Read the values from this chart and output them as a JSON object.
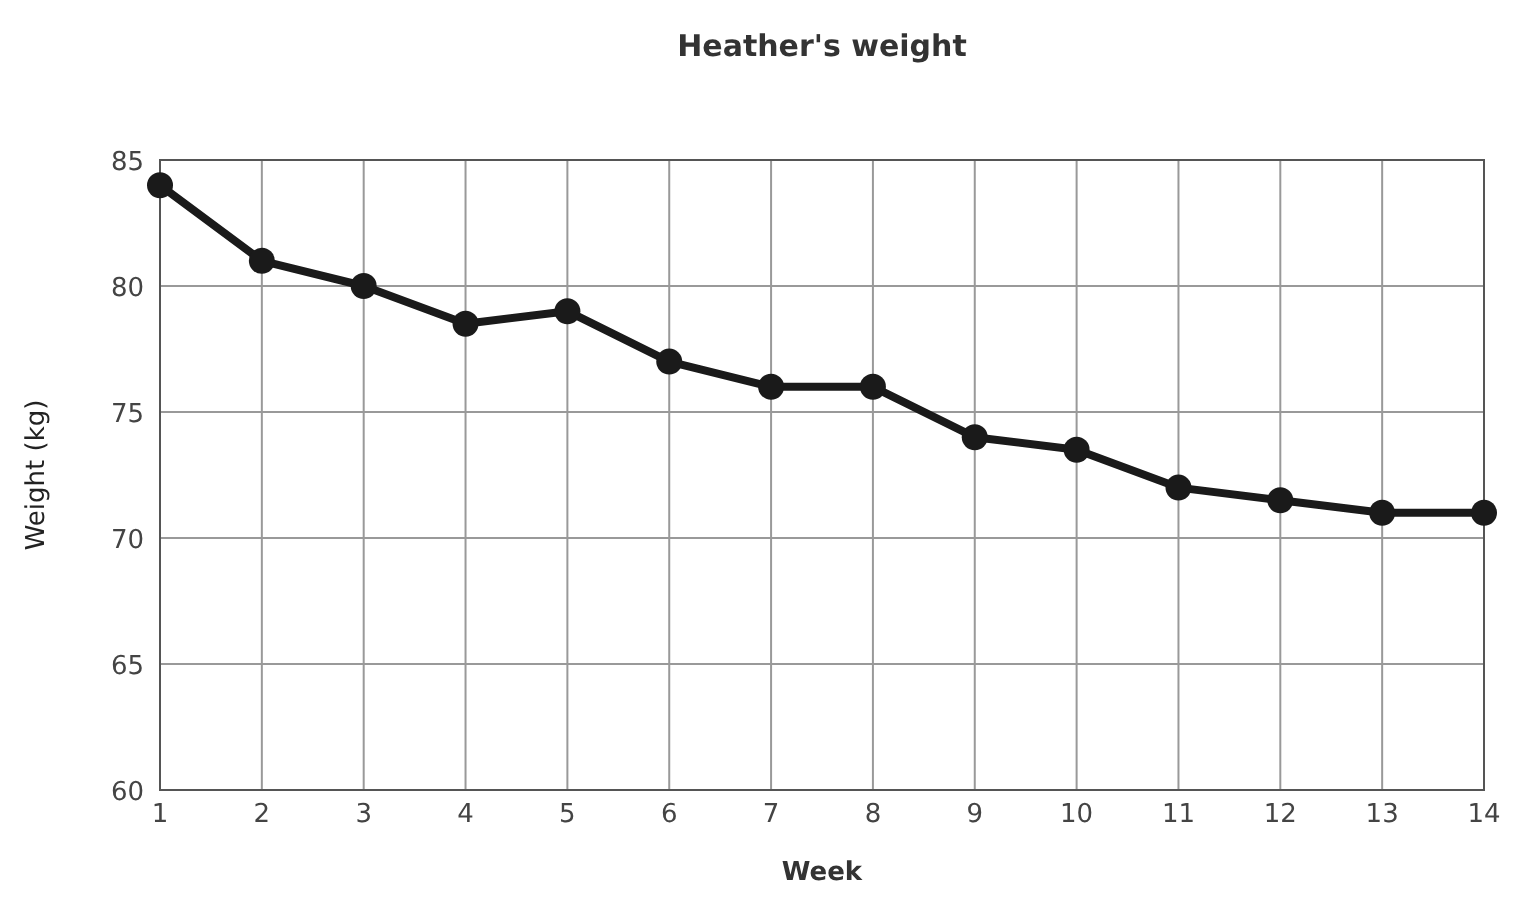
{
  "chart_data": {
    "type": "line",
    "title": "Heather's weight",
    "xlabel": "Week",
    "ylabel": "Weight (kg)",
    "x": [
      1,
      2,
      3,
      4,
      5,
      6,
      7,
      8,
      9,
      10,
      11,
      12,
      13,
      14
    ],
    "series": [
      {
        "color": "#1a1a1a",
        "values": [
          84,
          81,
          80,
          78.5,
          79,
          77,
          76,
          76,
          74,
          73.5,
          72,
          71.5,
          71,
          71
        ]
      }
    ],
    "xlim": [
      1,
      14
    ],
    "xticks": [
      1,
      2,
      3,
      4,
      5,
      6,
      7,
      8,
      9,
      10,
      11,
      12,
      13,
      14
    ],
    "ylim": [
      60,
      85
    ],
    "yticks": [
      60,
      65,
      70,
      75,
      80,
      85
    ],
    "grid": true,
    "marker": "circle",
    "line_style": "solid"
  }
}
